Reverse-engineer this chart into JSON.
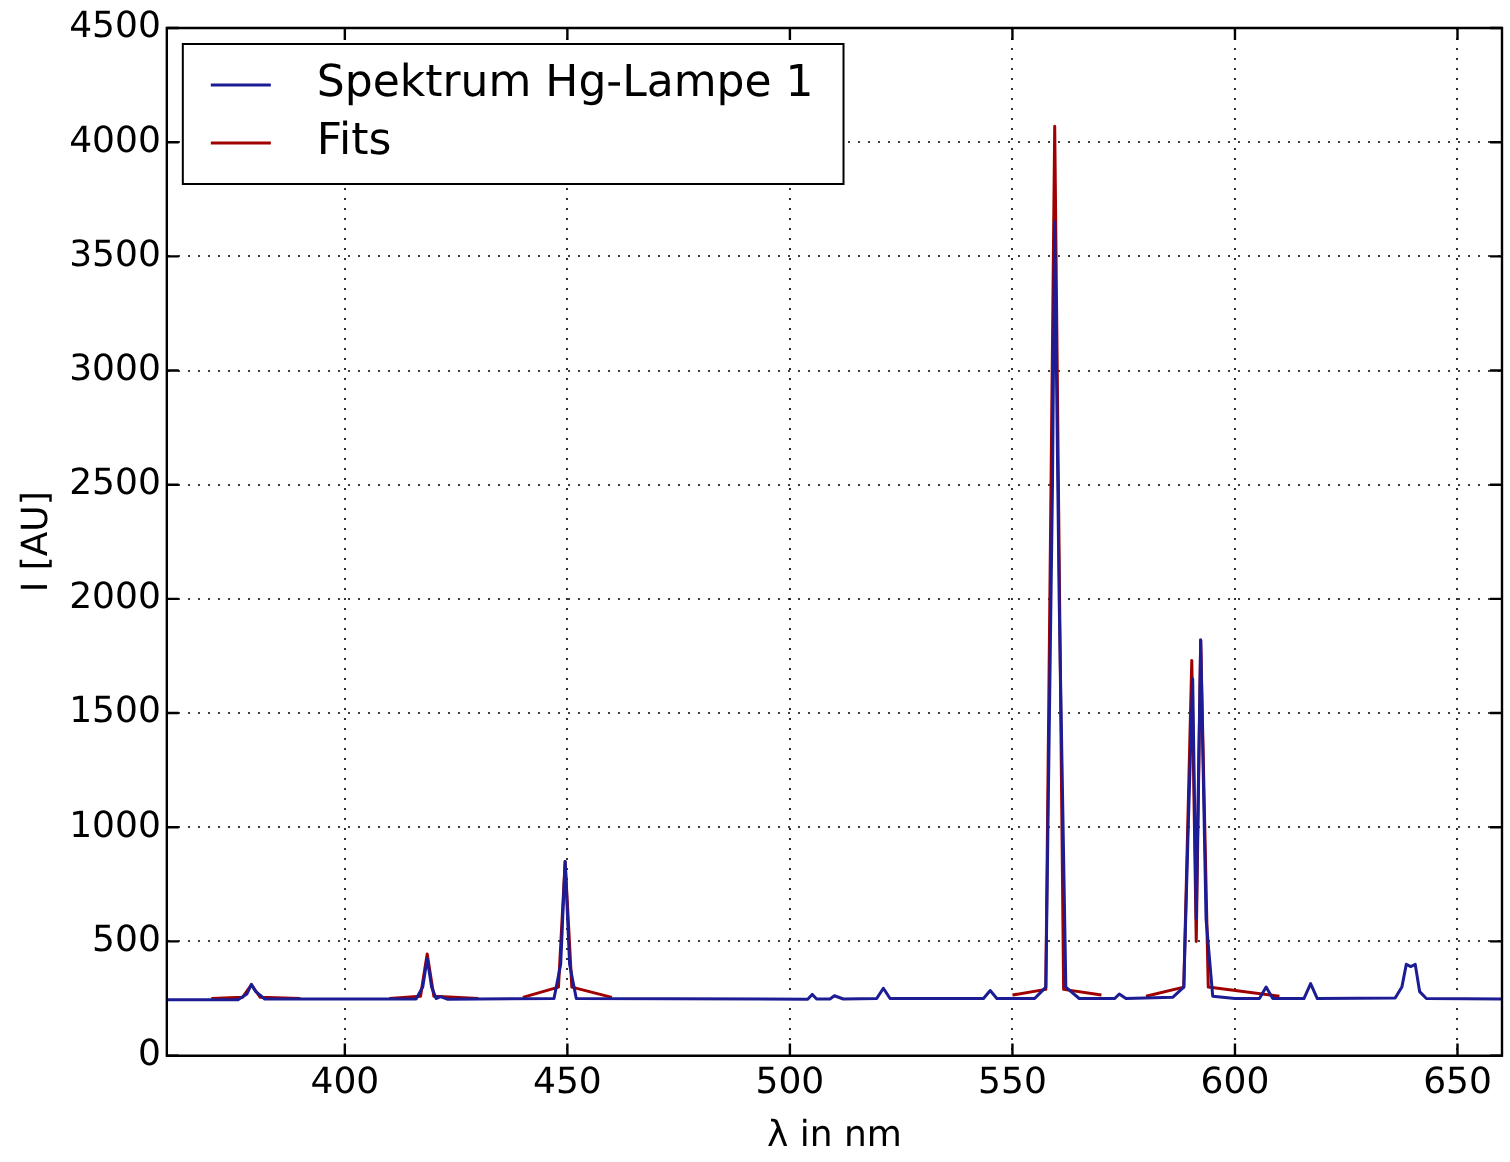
{
  "chart_data": {
    "type": "line",
    "xlabel": "λ in nm",
    "ylabel": "I [AU]",
    "xlim": [
      360,
      660
    ],
    "xticks": [
      400,
      450,
      500,
      550,
      600,
      650
    ],
    "ylim": [
      0,
      4500
    ],
    "yticks": [
      0,
      500,
      1000,
      1500,
      2000,
      2500,
      3000,
      3500,
      4000,
      4500
    ],
    "grid": true,
    "legend": "top left",
    "marker": "none",
    "line_style": "solid",
    "series": [
      {
        "name": "Spektrum Hg-Lampe 1",
        "color": "#1c1c94",
        "x": [
          360,
          376,
          378,
          379,
          380,
          382,
          416,
          417.5,
          418.5,
          419.5,
          420.5,
          421.5,
          423,
          447,
          448.5,
          449.5,
          450.5,
          452,
          504,
          505,
          506,
          509,
          510,
          512,
          519.5,
          521,
          522.5,
          543.5,
          545,
          546.5,
          555,
          557.5,
          559,
          559.5,
          560.5,
          562,
          565,
          573,
          574,
          575.5,
          586,
          588.5,
          589.5,
          590.5,
          591.3,
          592.3,
          593.5,
          595,
          600,
          605.5,
          607,
          608.5,
          615.5,
          617,
          618.5,
          636,
          637.5,
          638.5,
          639.5,
          640.5,
          641.5,
          643,
          660
        ],
        "values": [
          245,
          245,
          270,
          312,
          280,
          248,
          248,
          300,
          425,
          300,
          250,
          258,
          247,
          250,
          400,
          850,
          400,
          250,
          247,
          268,
          248,
          248,
          262,
          248,
          250,
          295,
          250,
          250,
          285,
          250,
          250,
          300,
          2500,
          3650,
          2000,
          300,
          250,
          250,
          270,
          250,
          255,
          300,
          1000,
          1650,
          600,
          1820,
          600,
          260,
          250,
          250,
          300,
          250,
          250,
          315,
          250,
          252,
          300,
          400,
          390,
          400,
          280,
          250,
          248
        ]
      },
      {
        "name": "Fits",
        "color": "#a00000",
        "x": [
          370,
          377,
          379,
          381,
          390,
          400,
          410,
          417,
          418.5,
          420,
          430,
          435,
          440,
          448,
          449.5,
          451,
          460,
          500,
          550,
          557.5,
          559.5,
          561.5,
          570,
          575,
          580,
          588.5,
          590.3,
          591.3,
          592.3,
          594,
          610
        ],
        "values": [
          250,
          255,
          310,
          255,
          250,
          null,
          250,
          260,
          445,
          260,
          250,
          null,
          255,
          300,
          850,
          300,
          255,
          null,
          265,
          290,
          4070,
          290,
          265,
          null,
          260,
          300,
          1730,
          500,
          1820,
          300,
          260
        ]
      }
    ]
  }
}
